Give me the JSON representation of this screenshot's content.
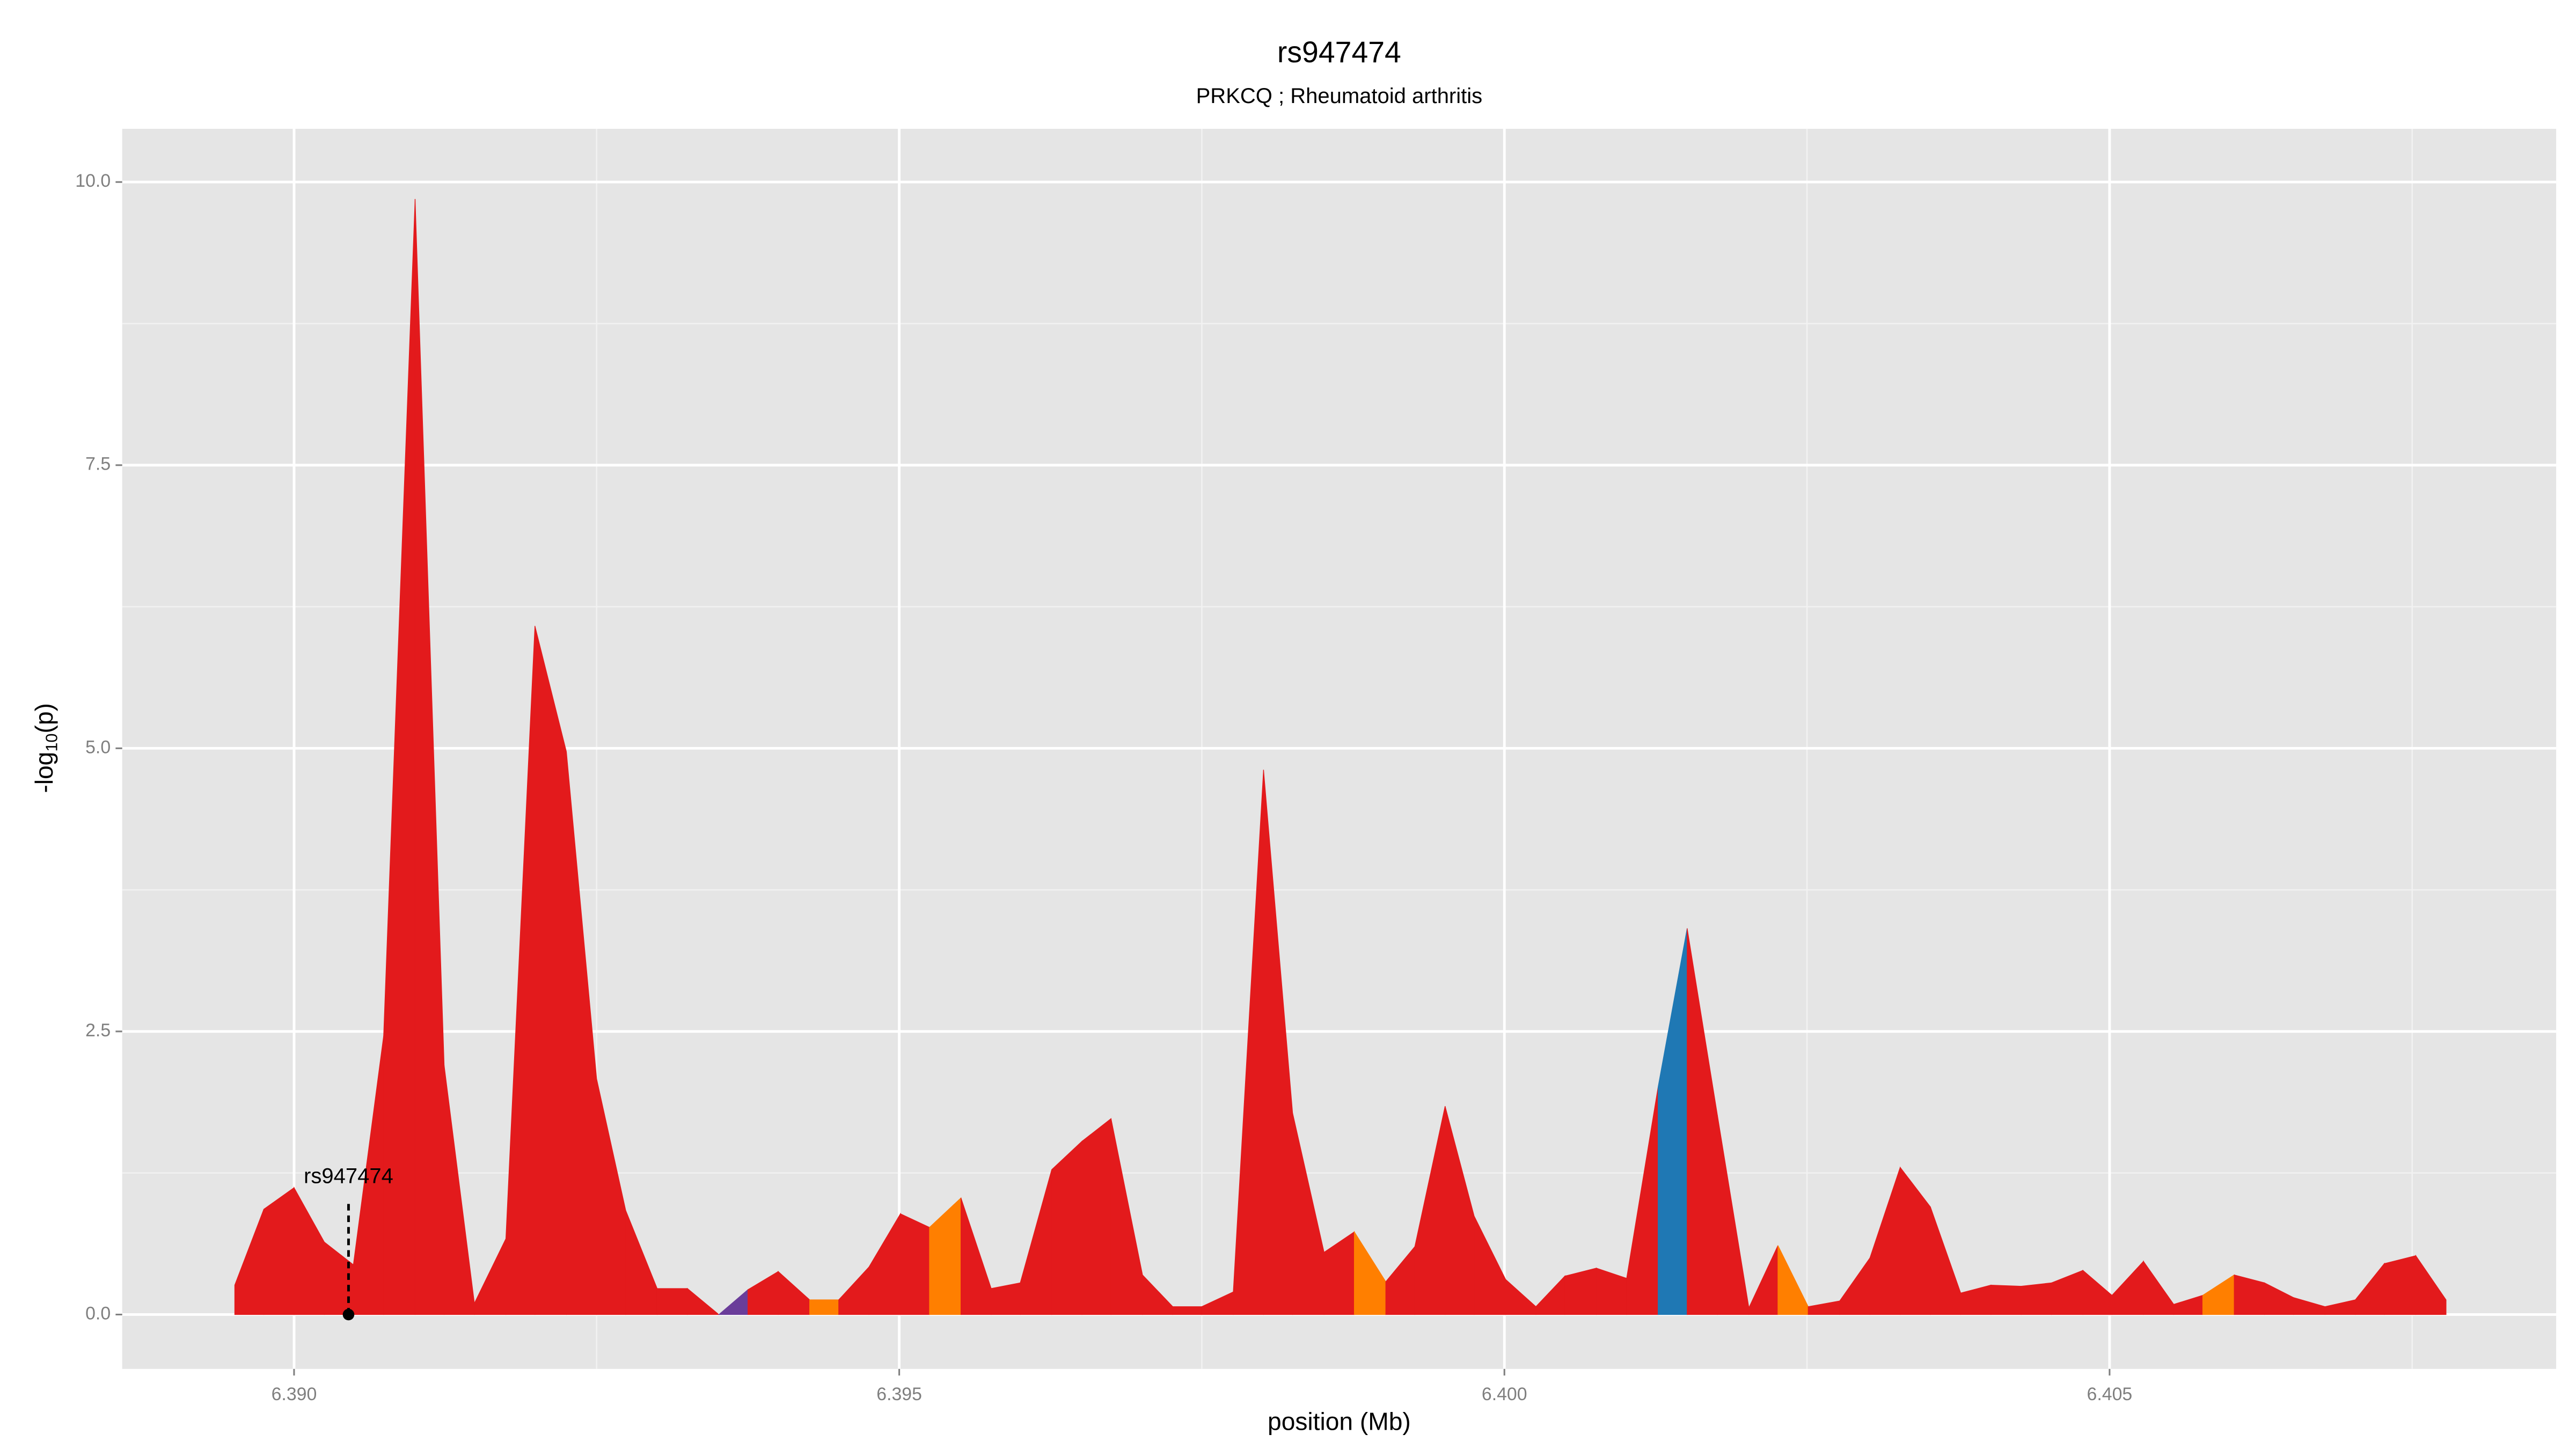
{
  "chart_data": {
    "type": "area",
    "title": "rs947474",
    "subtitle": "PRKCQ ; Rheumatoid arthritis",
    "x_label": "position (Mb)",
    "y_label": {
      "prefix": "-log",
      "sub": "10",
      "suffix": "(p)"
    },
    "x": [
      6.38951,
      6.38975,
      6.39,
      6.39025,
      6.39049,
      6.39074,
      6.391,
      6.39124,
      6.39149,
      6.39175,
      6.39199,
      6.39225,
      6.3925,
      6.39274,
      6.393,
      6.39325,
      6.39351,
      6.39375,
      6.394,
      6.39426,
      6.3945,
      6.39475,
      6.39501,
      6.39525,
      6.39551,
      6.39576,
      6.396,
      6.39626,
      6.39651,
      6.39675,
      6.39701,
      6.39726,
      6.3975,
      6.39776,
      6.39801,
      6.39825,
      6.39851,
      6.39876,
      6.39902,
      6.39926,
      6.39951,
      6.39975,
      6.40001,
      6.40026,
      6.4005,
      6.40076,
      6.40101,
      6.40127,
      6.40151,
      6.40176,
      6.40202,
      6.40226,
      6.40251,
      6.40277,
      6.40302,
      6.40327,
      6.40352,
      6.40377,
      6.40402,
      6.40427,
      6.40452,
      6.40478,
      6.40502,
      6.40528,
      6.40553,
      6.40577,
      6.40603,
      6.40628,
      6.40652,
      6.40678,
      6.40703,
      6.40727,
      6.40753,
      6.40778
    ],
    "values": [
      0.26,
      0.93,
      1.12,
      0.64,
      0.44,
      2.46,
      9.85,
      2.2,
      0.1,
      0.67,
      6.08,
      4.97,
      2.08,
      0.92,
      0.23,
      0.23,
      0,
      0.22,
      0.38,
      0.13,
      0.13,
      0.42,
      0.89,
      0.77,
      1.03,
      0.23,
      0.28,
      1.28,
      1.53,
      1.73,
      0.35,
      0.07,
      0.07,
      0.2,
      4.81,
      1.78,
      0.55,
      0.73,
      0.29,
      0.6,
      1.84,
      0.87,
      0.31,
      0.07,
      0.34,
      0.41,
      0.32,
      2.01,
      3.41,
      1.76,
      0.06,
      0.61,
      0.07,
      0.12,
      0.5,
      1.3,
      0.95,
      0.19,
      0.26,
      0.25,
      0.28,
      0.39,
      0.17,
      0.47,
      0.09,
      0.17,
      0.35,
      0.28,
      0.15,
      0.07,
      0.13,
      0.45,
      0.52,
      0.13
    ],
    "color": "#e31a1c",
    "segment_colors": [
      {
        "segment": 16,
        "color": "#6a3d9a"
      },
      {
        "segment": 19,
        "color": "#ff7f00"
      },
      {
        "segment": 23,
        "color": "#ff7f00"
      },
      {
        "segment": 37,
        "color": "#ff7f00"
      },
      {
        "segment": 47,
        "color": "#1f78b4"
      },
      {
        "segment": 51,
        "color": "#ff7f00"
      },
      {
        "segment": 65,
        "color": "#ff7f00"
      }
    ],
    "annotation": {
      "text": "rs947474",
      "x": 6.39045,
      "y": 0
    },
    "xlim": [
      6.38858,
      6.40869
    ],
    "ylim": [
      -0.48,
      10.47
    ],
    "xticks": [
      {
        "value": 6.39,
        "label": "6.390"
      },
      {
        "value": 6.395,
        "label": "6.395"
      },
      {
        "value": 6.4,
        "label": "6.400"
      },
      {
        "value": 6.405,
        "label": "6.405"
      }
    ],
    "yticks": [
      {
        "value": 0,
        "label": "0.0"
      },
      {
        "value": 2.5,
        "label": "2.5"
      },
      {
        "value": 5,
        "label": "5.0"
      },
      {
        "value": 7.5,
        "label": "7.5"
      },
      {
        "value": 10,
        "label": "10.0"
      }
    ],
    "minor_xticks": [
      6.3875,
      6.3925,
      6.3975,
      6.4025,
      6.4075
    ],
    "minor_yticks": [
      1.25,
      3.75,
      6.25,
      8.75
    ],
    "grid": true
  }
}
